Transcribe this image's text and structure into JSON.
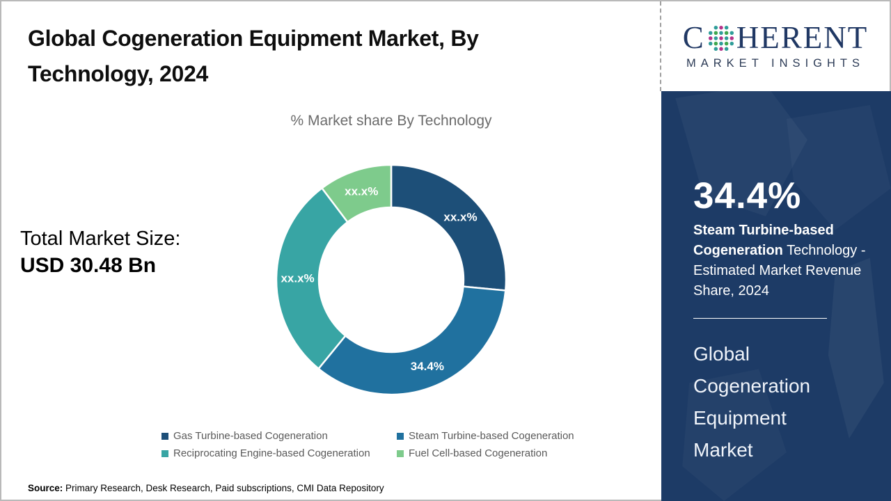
{
  "header": {
    "title": "Global Cogeneration Equipment Market, By Technology, 2024"
  },
  "logo": {
    "word_start": "C",
    "word_end": "HERENT",
    "tagline": "MARKET INSIGHTS",
    "navy": "#203864",
    "dot_teal": "#2f9d99",
    "dot_green": "#3fa74e",
    "dot_magenta": "#b5338a"
  },
  "main": {
    "subtitle": "% Market share By Technology",
    "total_market_label": "Total Market Size:",
    "total_market_value": "USD 30.48 Bn",
    "source_label": "Source:",
    "source_text": " Primary Research, Desk Research, Paid subscriptions, CMI Data Repository"
  },
  "chart_data": {
    "type": "pie",
    "subtype": "donut",
    "title": "% Market share By Technology",
    "categories": [
      "Gas Turbine-based Cogeneration",
      "Steam Turbine-based Cogeneration",
      "Reciprocating Engine-based Cogeneration",
      "Fuel Cell-based Cogeneration"
    ],
    "slice_labels": [
      "xx.x%",
      "34.4%",
      "xx.x%",
      "xx.x%"
    ],
    "values_pct": [
      26.5,
      34.4,
      28.8,
      10.3
    ],
    "colors": [
      "#1d4f78",
      "#20719f",
      "#38a5a4",
      "#7ecb8c"
    ],
    "start_angle_deg": 0,
    "direction": "clockwise",
    "inner_radius_ratio": 0.63,
    "legend_position": "bottom"
  },
  "sidebar": {
    "stat_value": "34.4%",
    "stat_bold": "Steam Turbine-based Cogeneration",
    "stat_rest": " Technology - Estimated Market Revenue Share, 2024",
    "market_name": "Global\nCogeneration\nEquipment\nMarket",
    "bg_color": "#1d3b66"
  }
}
